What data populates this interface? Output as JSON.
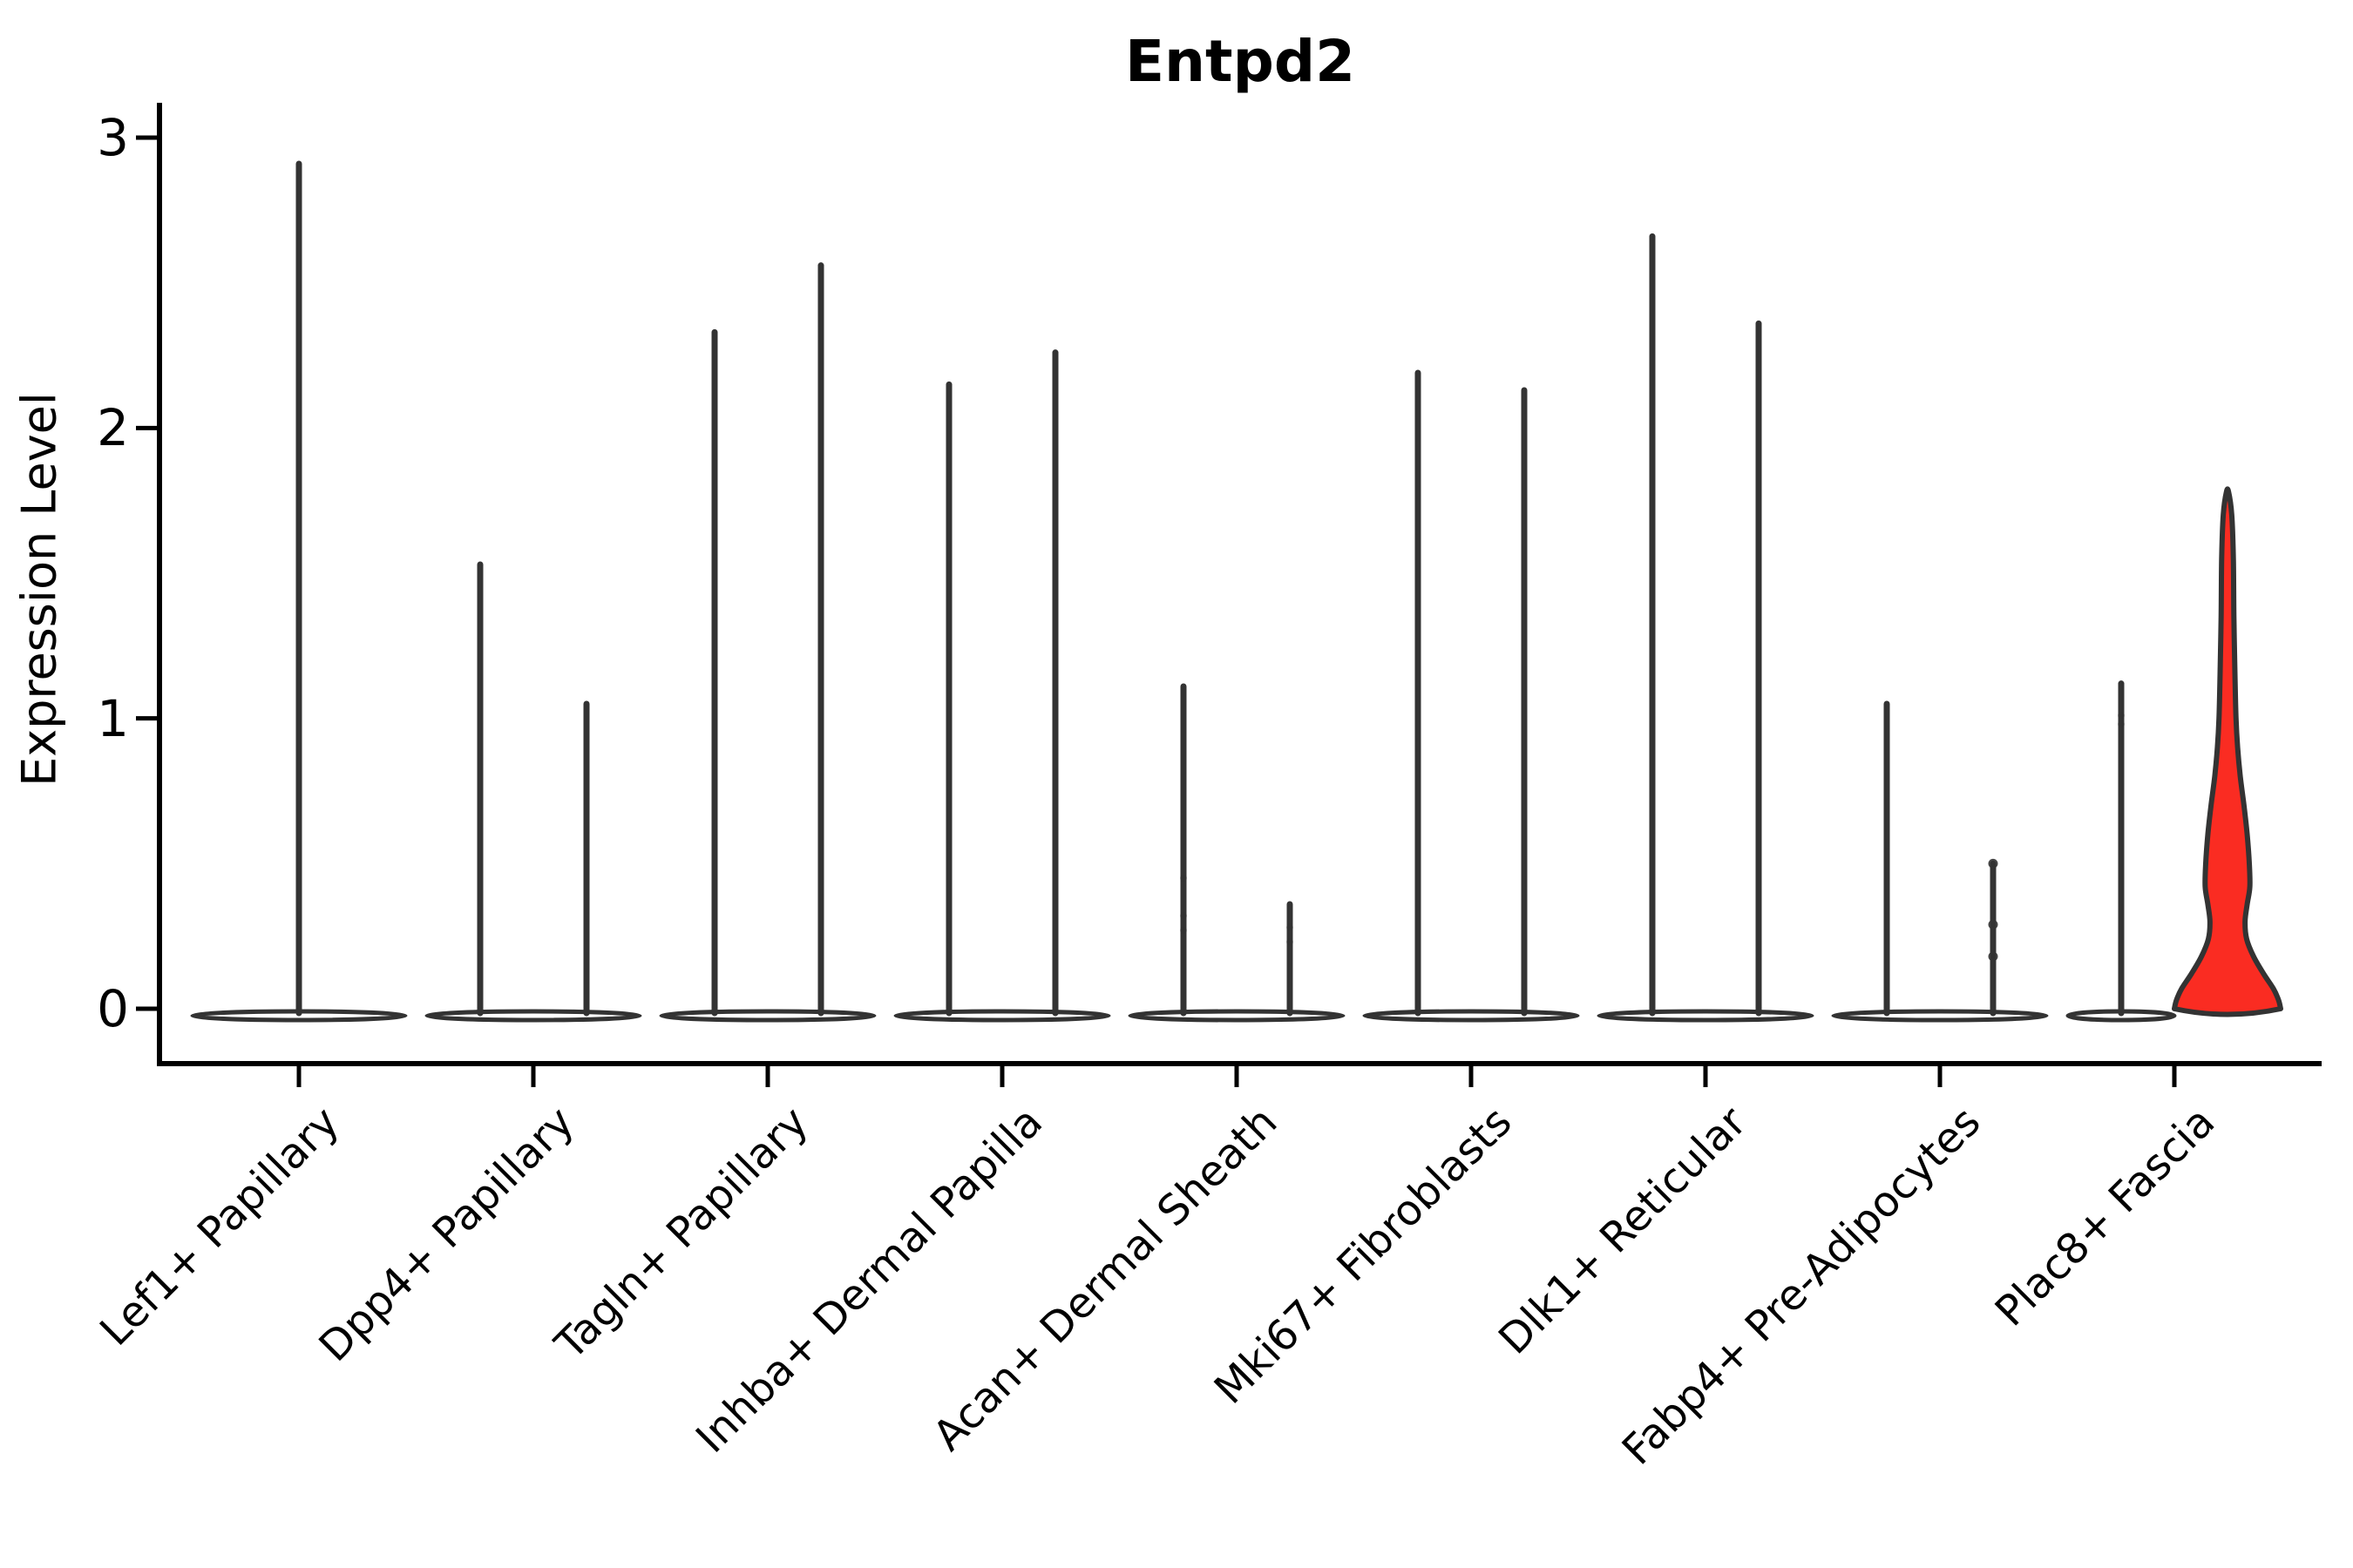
{
  "title": "Entpd2",
  "y_axis_label": "Expression Level",
  "chart_data": {
    "type": "violin",
    "title": "Entpd2",
    "ylabel": "Expression Level",
    "xlabel": "",
    "ylim": [
      0,
      3
    ],
    "grid": false,
    "legend": "none",
    "y_tick_labels": [
      "3",
      "2",
      "1",
      "0"
    ],
    "y_tick_values": [
      3,
      2,
      1,
      0
    ],
    "categories": [
      "Lef1+ Papillary",
      "Dpp4+ Papillary",
      "Tagln+ Papillary",
      "Inhba+ Dermal Papilla",
      "Acan+ Dermal Sheath",
      "Mki67+ Fibroblasts",
      "Dlk1+ Reticular",
      "Fabp4+ Pre-Adipocytes",
      "Plac8+ Fascia"
    ],
    "groups": [
      {
        "category": "Lef1+ Papillary",
        "violins": [
          {
            "peak": 2.91,
            "fill": "#ffffff",
            "shape": "spike",
            "split": "center"
          }
        ]
      },
      {
        "category": "Dpp4+ Papillary",
        "violins": [
          {
            "peak": 1.53,
            "fill": "#ffffff",
            "shape": "spike"
          },
          {
            "peak": 1.05,
            "fill": "#ffffff",
            "shape": "spike"
          }
        ]
      },
      {
        "category": "Tagln+ Papillary",
        "violins": [
          {
            "peak": 2.33,
            "fill": "#ffffff",
            "shape": "spike"
          },
          {
            "peak": 2.56,
            "fill": "#ffffff",
            "shape": "spike"
          }
        ]
      },
      {
        "category": "Inhba+ Dermal Papilla",
        "violins": [
          {
            "peak": 2.15,
            "fill": "#ffffff",
            "shape": "spike"
          },
          {
            "peak": 2.26,
            "fill": "#ffffff",
            "shape": "spike"
          }
        ]
      },
      {
        "category": "Acan+ Dermal Sheath",
        "violins": [
          {
            "peak": 1.11,
            "fill": "#ffffff",
            "shape": "spike",
            "faint_dots": [
              0.45,
              0.32,
              0.27
            ]
          },
          {
            "peak": 0.36,
            "fill": "#ffffff",
            "shape": "spike",
            "faint_dots": [
              0.28,
              0.23
            ]
          }
        ]
      },
      {
        "category": "Mki67+ Fibroblasts",
        "violins": [
          {
            "peak": 2.19,
            "fill": "#ffffff",
            "shape": "spike"
          },
          {
            "peak": 2.13,
            "fill": "#ffffff",
            "shape": "spike"
          }
        ]
      },
      {
        "category": "Dlk1+ Reticular",
        "violins": [
          {
            "peak": 2.66,
            "fill": "#ffffff",
            "shape": "spike"
          },
          {
            "peak": 2.36,
            "fill": "#ffffff",
            "shape": "spike"
          }
        ]
      },
      {
        "category": "Fabp4+ Pre-Adipocytes",
        "violins": [
          {
            "peak": 1.05,
            "fill": "#ffffff",
            "shape": "spike"
          },
          {
            "peak": 0.5,
            "fill": "#ffffff",
            "shape": "spike",
            "dots": [
              0.5,
              0.29,
              0.18
            ]
          }
        ]
      },
      {
        "category": "Plac8+ Fascia",
        "violins": [
          {
            "peak": 1.12,
            "fill": "#ffffff",
            "shape": "spike",
            "faint_dots": [
              1.01,
              0.98
            ]
          },
          {
            "peak": 1.78,
            "fill": "#fa2c22",
            "shape": "violin",
            "profile": [
              [
                0.0,
                1.0
              ],
              [
                0.03,
                0.96
              ],
              [
                0.07,
                0.86
              ],
              [
                0.12,
                0.68
              ],
              [
                0.18,
                0.49
              ],
              [
                0.24,
                0.36
              ],
              [
                0.3,
                0.33
              ],
              [
                0.36,
                0.37
              ],
              [
                0.42,
                0.42
              ],
              [
                0.5,
                0.41
              ],
              [
                0.6,
                0.37
              ],
              [
                0.7,
                0.31
              ],
              [
                0.8,
                0.24
              ],
              [
                0.9,
                0.19
              ],
              [
                1.0,
                0.16
              ],
              [
                1.15,
                0.14
              ],
              [
                1.35,
                0.12
              ],
              [
                1.55,
                0.11
              ],
              [
                1.7,
                0.08
              ],
              [
                1.78,
                0.02
              ]
            ]
          }
        ]
      }
    ],
    "colors": {
      "outline": "#333333",
      "axis": "#000000",
      "default_fill": "#ffffff",
      "highlight_fill": "#fa2c22",
      "background": "#ffffff"
    }
  }
}
